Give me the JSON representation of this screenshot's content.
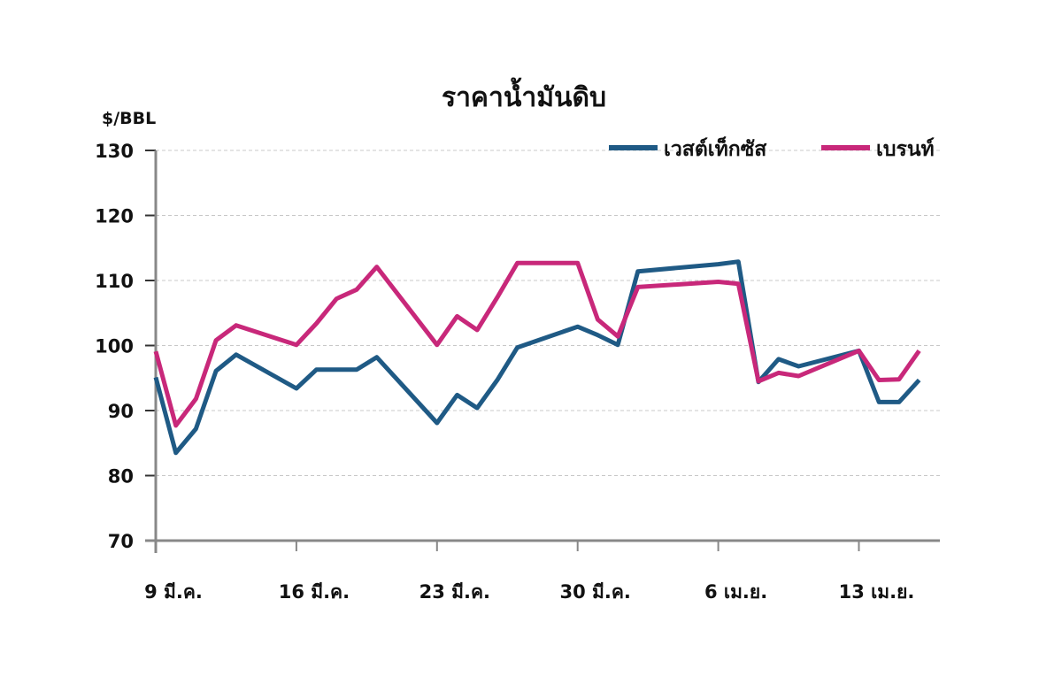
{
  "chart_data": {
    "type": "line",
    "title": "ราคาน้ำมันดิบ",
    "ylabel": "$/BBL",
    "xlabel": "",
    "ylim": [
      70,
      130
    ],
    "yticks": [
      70,
      80,
      90,
      100,
      110,
      120,
      130
    ],
    "grid": true,
    "legend_position": "top-right",
    "xtick_labels": [
      "9 มี.ค.",
      "16 มี.ค.",
      "23 มี.ค.",
      "30 มี.ค.",
      "6 เม.ย.",
      "13 เม.ย."
    ],
    "xtick_day_offsets": [
      0,
      7,
      14,
      21,
      28,
      35
    ],
    "x_day_offsets": [
      0,
      1,
      2,
      3,
      4,
      7,
      8,
      9,
      10,
      11,
      14,
      15,
      16,
      17,
      18,
      21,
      22,
      23,
      24,
      28,
      29,
      30,
      31,
      32,
      35,
      36,
      37,
      38
    ],
    "series": [
      {
        "name": "เวสต์เท็กซัส",
        "color": "#1f5a85",
        "values": [
          95.1,
          83.5,
          87.2,
          96.1,
          98.6,
          93.4,
          96.3,
          96.3,
          96.3,
          98.2,
          88.1,
          92.4,
          90.4,
          94.7,
          99.7,
          102.9,
          101.6,
          100.1,
          111.4,
          112.5,
          112.9,
          94.4,
          97.9,
          96.8,
          99.2,
          91.3,
          91.3,
          94.7
        ]
      },
      {
        "name": "เบรนท์",
        "color": "#c8287a",
        "values": [
          99.1,
          87.7,
          91.8,
          100.8,
          103.1,
          100.1,
          103.4,
          107.2,
          108.6,
          112.1,
          100.1,
          104.5,
          102.4,
          107.4,
          112.7,
          112.7,
          104.0,
          101.4,
          109.0,
          109.8,
          109.5,
          94.5,
          95.8,
          95.3,
          99.2,
          94.7,
          94.8,
          99.2
        ]
      }
    ]
  }
}
